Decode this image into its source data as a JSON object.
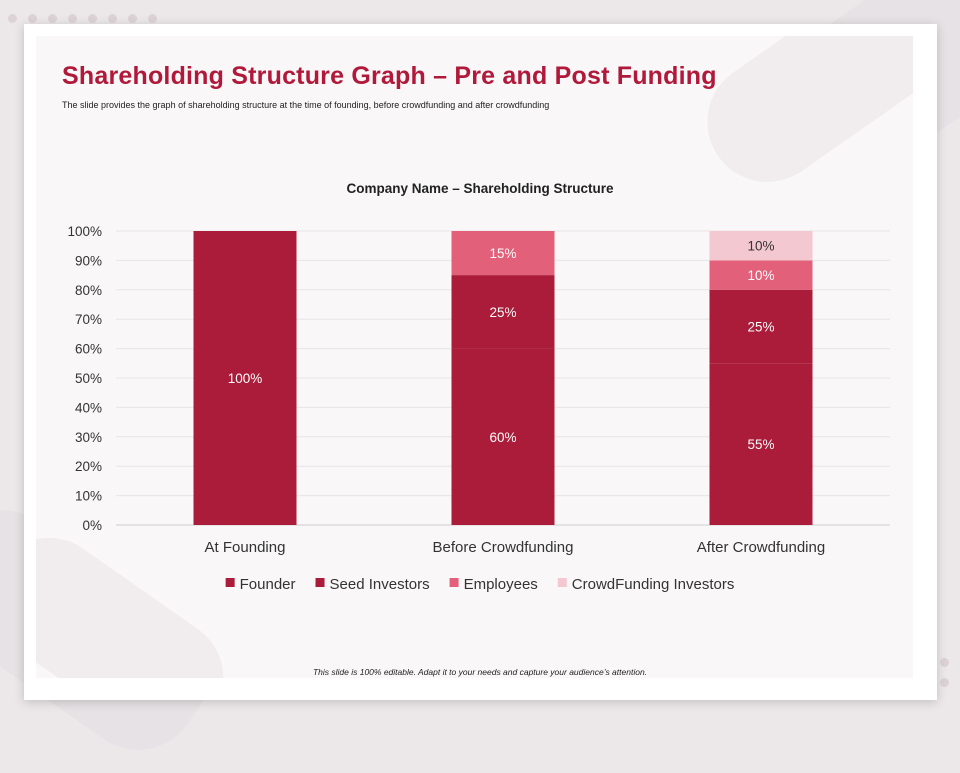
{
  "slide": {
    "title": "Shareholding Structure Graph – Pre and Post Funding",
    "subtitle": "The slide provides the graph of shareholding structure at the time of founding, before crowdfunding and after crowdfunding",
    "footer": "This slide is 100% editable. Adapt it to your needs and capture your audience’s attention."
  },
  "chart_data": {
    "type": "bar",
    "stacked": true,
    "title": "Company Name – Shareholding Structure",
    "categories": [
      "At Founding",
      "Before Crowdfunding",
      "After Crowdfunding"
    ],
    "series": [
      {
        "name": "Founder",
        "values": [
          100,
          60,
          55
        ],
        "labels": [
          "100%",
          "60%",
          "55%"
        ],
        "color": "#aa1c39"
      },
      {
        "name": "Seed Investors",
        "values": [
          0,
          25,
          25
        ],
        "labels": [
          "",
          "25%",
          "25%"
        ],
        "color": "#aa1c39"
      },
      {
        "name": "Employees",
        "values": [
          0,
          15,
          10
        ],
        "labels": [
          "",
          "15%",
          "10%"
        ],
        "color": "#e2607a"
      },
      {
        "name": "CrowdFunding Investors",
        "values": [
          0,
          0,
          10
        ],
        "labels": [
          "",
          "",
          "10%"
        ],
        "color": "#f4c8d0"
      }
    ],
    "ylim": [
      0,
      100
    ],
    "yticks": [
      "0%",
      "10%",
      "20%",
      "30%",
      "40%",
      "50%",
      "60%",
      "70%",
      "80%",
      "90%",
      "100%"
    ],
    "grid": true,
    "legend": "bottom"
  }
}
